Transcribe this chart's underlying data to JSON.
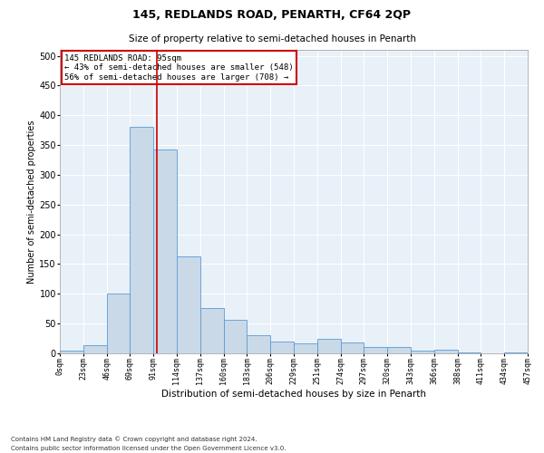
{
  "title": "145, REDLANDS ROAD, PENARTH, CF64 2QP",
  "subtitle": "Size of property relative to semi-detached houses in Penarth",
  "xlabel": "Distribution of semi-detached houses by size in Penarth",
  "ylabel": "Number of semi-detached properties",
  "footnote1": "Contains HM Land Registry data © Crown copyright and database right 2024.",
  "footnote2": "Contains public sector information licensed under the Open Government Licence v3.0.",
  "annotation_line1": "145 REDLANDS ROAD: 95sqm",
  "annotation_line2": "← 43% of semi-detached houses are smaller (548)",
  "annotation_line3": "56% of semi-detached houses are larger (708) →",
  "bar_color": "#c9d9e8",
  "bar_edge_color": "#5b9bd5",
  "red_line_x": 95,
  "annotation_box_color": "#ffffff",
  "annotation_box_edge": "#cc0000",
  "bin_edges": [
    0,
    23,
    46,
    69,
    92,
    115,
    138,
    161,
    184,
    207,
    230,
    253,
    276,
    299,
    322,
    345,
    368,
    391,
    414,
    437,
    460
  ],
  "bar_heights": [
    5,
    13,
    100,
    380,
    343,
    163,
    76,
    57,
    30,
    20,
    17,
    25,
    18,
    10,
    11,
    5,
    6,
    2,
    0,
    2
  ],
  "tick_labels": [
    "0sqm",
    "23sqm",
    "46sqm",
    "69sqm",
    "91sqm",
    "114sqm",
    "137sqm",
    "160sqm",
    "183sqm",
    "206sqm",
    "229sqm",
    "251sqm",
    "274sqm",
    "297sqm",
    "320sqm",
    "343sqm",
    "366sqm",
    "388sqm",
    "411sqm",
    "434sqm",
    "457sqm"
  ],
  "ylim": [
    0,
    510
  ],
  "yticks": [
    0,
    50,
    100,
    150,
    200,
    250,
    300,
    350,
    400,
    450,
    500
  ],
  "plot_background": "#e8f0f8",
  "title_fontsize": 9,
  "subtitle_fontsize": 7.5,
  "xlabel_fontsize": 7.5,
  "ylabel_fontsize": 7,
  "footnote_fontsize": 5,
  "annotation_fontsize": 6.5,
  "ytick_fontsize": 7,
  "xtick_fontsize": 6
}
